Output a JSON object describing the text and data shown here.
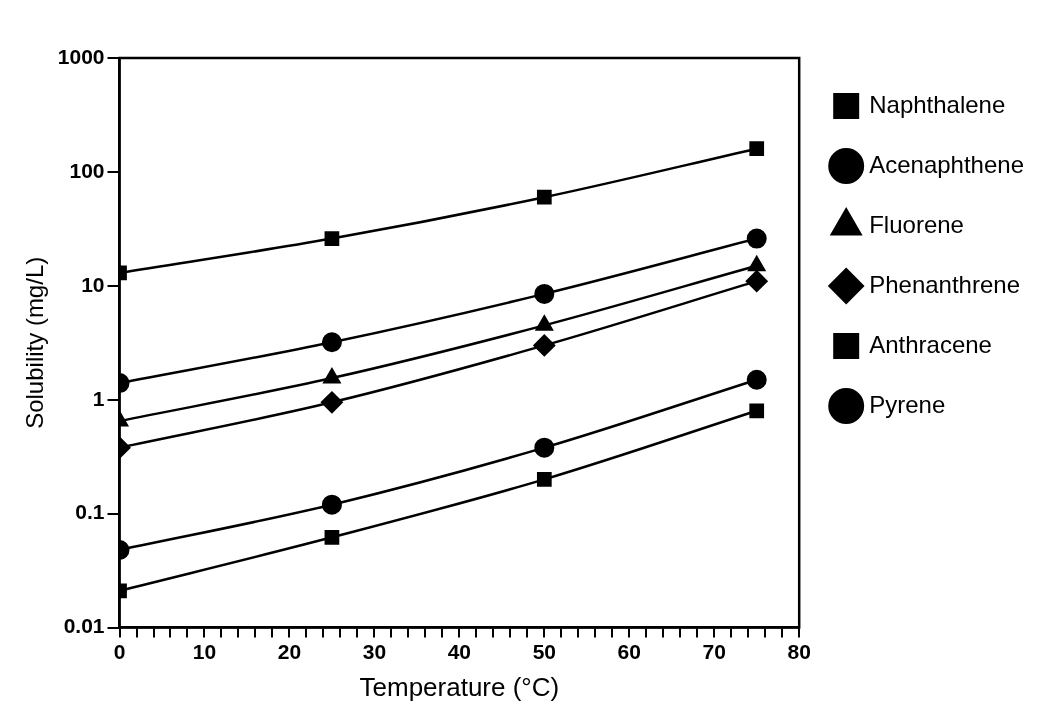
{
  "chart_data": {
    "type": "line",
    "xlabel": "Temperature (°C)",
    "ylabel": "Solubility (mg/L)",
    "x": [
      0,
      25,
      50,
      75
    ],
    "series": [
      {
        "name": "Naphthalene",
        "color": "#000000",
        "marker": "square",
        "values": [
          13,
          26,
          60,
          160
        ]
      },
      {
        "name": "Acenaphthene",
        "color": "#000000",
        "marker": "circle",
        "values": [
          1.4,
          3.2,
          8.5,
          26
        ]
      },
      {
        "name": "Fluorene",
        "color": "#000000",
        "marker": "triangle",
        "values": [
          0.65,
          1.55,
          4.5,
          15
        ]
      },
      {
        "name": "Phenanthrene",
        "color": "#000000",
        "marker": "diamond",
        "values": [
          0.38,
          0.95,
          3.0,
          11
        ]
      },
      {
        "name": "Anthracene",
        "color": "#000000",
        "marker": "square",
        "values": [
          0.021,
          0.062,
          0.2,
          0.8
        ]
      },
      {
        "name": "Pyrene",
        "color": "#000000",
        "marker": "circle",
        "values": [
          0.048,
          0.12,
          0.38,
          1.5
        ]
      }
    ],
    "xlim": [
      0,
      80
    ],
    "xticks": [
      0,
      {
        "value": 2,
        "label": null
      },
      {
        "value": 4,
        "label": null
      },
      {
        "value": 6,
        "label": null
      },
      {
        "value": 8,
        "label": null
      },
      10,
      {
        "value": 12,
        "label": null
      },
      {
        "value": 14,
        "label": null
      },
      {
        "value": 16,
        "label": null
      },
      {
        "value": 18,
        "label": null
      },
      20,
      {
        "value": 22,
        "label": null
      },
      {
        "value": 24,
        "label": null
      },
      {
        "value": 26,
        "label": null
      },
      {
        "value": 28,
        "label": null
      },
      30,
      {
        "value": 32,
        "label": null
      },
      {
        "value": 34,
        "label": null
      },
      {
        "value": 36,
        "label": null
      },
      {
        "value": 38,
        "label": null
      },
      40,
      {
        "value": 42,
        "label": null
      },
      {
        "value": 44,
        "label": null
      },
      {
        "value": 46,
        "label": null
      },
      {
        "value": 48,
        "label": null
      },
      50,
      {
        "value": 52,
        "label": null
      },
      {
        "value": 54,
        "label": null
      },
      {
        "value": 56,
        "label": null
      },
      {
        "value": 58,
        "label": null
      },
      60,
      {
        "value": 62,
        "label": null
      },
      {
        "value": 64,
        "label": null
      },
      {
        "value": 66,
        "label": null
      },
      {
        "value": 68,
        "label": null
      },
      70,
      {
        "value": 72,
        "label": null
      },
      {
        "value": 74,
        "label": null
      },
      {
        "value": 76,
        "label": null
      },
      {
        "value": 78,
        "label": null
      },
      80
    ],
    "ylim": [
      0.01,
      1000
    ],
    "yticks": [
      0.01,
      0.1,
      1,
      10,
      100,
      1000
    ],
    "log": "y",
    "grid": false,
    "legend": "right",
    "line_style": "solid"
  }
}
